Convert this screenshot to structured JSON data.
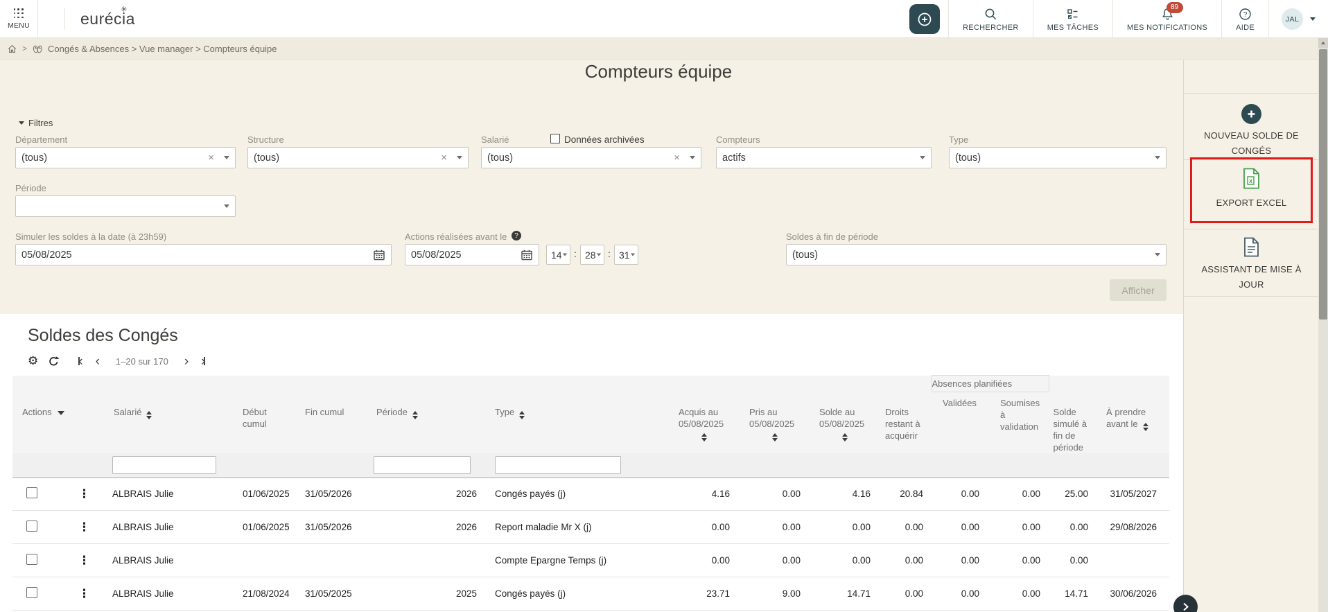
{
  "header": {
    "menu": "MENU",
    "logo": "eurécia",
    "search_label": "RECHERCHER",
    "tasks_label": "MES TÂCHES",
    "notifications_label": "MES NOTIFICATIONS",
    "notifications_badge": "89",
    "help_label": "AIDE",
    "avatar": "JAL"
  },
  "breadcrumb": {
    "path": "Congés & Absences > Vue manager > Compteurs équipe"
  },
  "page_title": "Compteurs équipe",
  "filters": {
    "section_label": "Filtres",
    "departement_label": "Département",
    "departement_value": "(tous)",
    "structure_label": "Structure",
    "structure_value": "(tous)",
    "salarie_label": "Salarié",
    "archived_label": "Données archivées",
    "salarie_value": "(tous)",
    "compteurs_label": "Compteurs",
    "compteurs_value": "actifs",
    "type_label": "Type",
    "type_value": "(tous)",
    "periode_label": "Période",
    "periode_value": "",
    "simulate_label": "Simuler les soldes à la date (à 23h59)",
    "simulate_value": "05/08/2025",
    "actions_before_label": "Actions réalisées avant le",
    "actions_before_date": "05/08/2025",
    "hour": "14",
    "minute": "28",
    "second": "31",
    "end_period_label": "Soldes à fin de période",
    "end_period_value": "(tous)",
    "submit_label": "Afficher"
  },
  "sidebar": {
    "new_balance_label": "NOUVEAU SOLDE DE CONGÉS",
    "export_excel_label": "EXPORT EXCEL",
    "update_assistant_label": "ASSISTANT DE MISE À JOUR"
  },
  "table": {
    "title": "Soldes des Congés",
    "pagination": "1–20 sur 170",
    "headers": {
      "actions": "Actions",
      "salarie": "Salarié",
      "debut": "Début cumul",
      "fin": "Fin cumul",
      "periode": "Période",
      "type": "Type",
      "acquis_l1": "Acquis au",
      "acquis_l2": "05/08/2025",
      "pris_l1": "Pris au",
      "pris_l2": "05/08/2025",
      "solde_l1": "Solde au",
      "solde_l2": "05/08/2025",
      "droits": "Droits restant à acquérir",
      "group": "Absences planifiées",
      "validees": "Validées",
      "soumises": "Soumises à validation",
      "solde_simule": "Solde simulé à fin de période",
      "a_prendre": "À prendre avant le"
    },
    "rows": [
      {
        "salarie": "ALBRAIS Julie",
        "debut": "01/06/2025",
        "fin": "31/05/2026",
        "periode": "2026",
        "type": "Congés payés (j)",
        "acquis": "4.16",
        "pris": "0.00",
        "solde": "4.16",
        "droits": "20.84",
        "validees": "0.00",
        "soumises": "0.00",
        "solde_simule": "25.00",
        "a_prendre": "31/05/2027"
      },
      {
        "salarie": "ALBRAIS Julie",
        "debut": "01/06/2025",
        "fin": "31/05/2026",
        "periode": "2026",
        "type": "Report maladie Mr X (j)",
        "acquis": "0.00",
        "pris": "0.00",
        "solde": "0.00",
        "droits": "0.00",
        "validees": "0.00",
        "soumises": "0.00",
        "solde_simule": "0.00",
        "a_prendre": "29/08/2026"
      },
      {
        "salarie": "ALBRAIS Julie",
        "debut": "",
        "fin": "",
        "periode": "",
        "type": "Compte Epargne Temps (j)",
        "acquis": "0.00",
        "pris": "0.00",
        "solde": "0.00",
        "droits": "0.00",
        "validees": "0.00",
        "soumises": "0.00",
        "solde_simule": "0.00",
        "a_prendre": ""
      },
      {
        "salarie": "ALBRAIS Julie",
        "debut": "21/08/2024",
        "fin": "31/05/2025",
        "periode": "2025",
        "type": "Congés payés (j)",
        "acquis": "23.71",
        "pris": "9.00",
        "solde": "14.71",
        "droits": "0.00",
        "validees": "0.00",
        "soumises": "0.00",
        "solde_simule": "14.71",
        "a_prendre": "30/06/2026"
      }
    ]
  },
  "colors": {
    "accent_teal": "#2d4a53",
    "positive_green": "#388e3c",
    "highlight_red": "#e21b1b",
    "badge_red": "#c14a38",
    "page_bg": "#f5f1e6"
  }
}
